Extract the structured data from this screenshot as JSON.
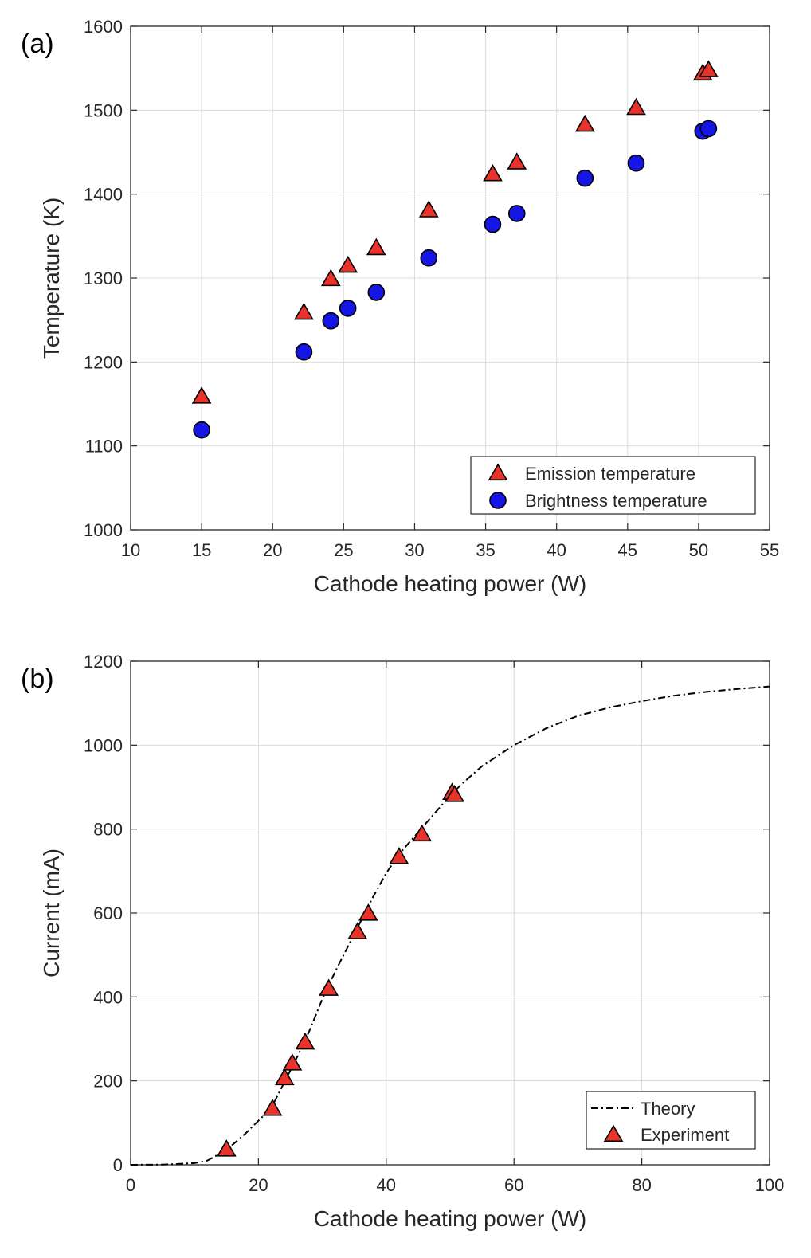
{
  "chart_data": [
    {
      "panel_label": "(a)",
      "type": "scatter",
      "xlabel": "Cathode heating power (W)",
      "ylabel": "Temperature (K)",
      "xlim": [
        10,
        55
      ],
      "ylim": [
        1000,
        1600
      ],
      "xticks": [
        10,
        15,
        20,
        25,
        30,
        35,
        40,
        45,
        50,
        55
      ],
      "yticks": [
        1000,
        1100,
        1200,
        1300,
        1400,
        1500,
        1600
      ],
      "grid": true,
      "legend_position": "bottom-right",
      "series": [
        {
          "name": "Emission temperature",
          "marker": "triangle",
          "color": "#e8322a",
          "points": [
            [
              15.0,
              1158
            ],
            [
              22.2,
              1258
            ],
            [
              24.1,
              1298
            ],
            [
              25.3,
              1314
            ],
            [
              27.3,
              1335
            ],
            [
              31.0,
              1380
            ],
            [
              35.5,
              1423
            ],
            [
              37.2,
              1437
            ],
            [
              42.0,
              1482
            ],
            [
              45.6,
              1502
            ],
            [
              50.3,
              1543
            ],
            [
              50.7,
              1547
            ]
          ]
        },
        {
          "name": "Brightness temperature",
          "marker": "circle",
          "color": "#1515e6",
          "points": [
            [
              15.0,
              1119
            ],
            [
              22.2,
              1212
            ],
            [
              24.1,
              1249
            ],
            [
              25.3,
              1264
            ],
            [
              27.3,
              1283
            ],
            [
              31.0,
              1324
            ],
            [
              35.5,
              1364
            ],
            [
              37.2,
              1377
            ],
            [
              42.0,
              1419
            ],
            [
              45.6,
              1437
            ],
            [
              50.3,
              1475
            ],
            [
              50.7,
              1478
            ]
          ]
        }
      ]
    },
    {
      "panel_label": "(b)",
      "type": "line",
      "xlabel": "Cathode heating power (W)",
      "ylabel": "Current (mA)",
      "xlim": [
        0,
        100
      ],
      "ylim": [
        0,
        1200
      ],
      "xticks": [
        0,
        20,
        40,
        60,
        80,
        100
      ],
      "yticks": [
        0,
        200,
        400,
        600,
        800,
        1000,
        1200
      ],
      "grid": true,
      "legend_position": "bottom-right",
      "series": [
        {
          "name": "Theory",
          "style": "dash-dot",
          "color": "#000000",
          "points": [
            [
              0,
              0
            ],
            [
              5,
              0.5
            ],
            [
              10,
              4
            ],
            [
              12,
              10
            ],
            [
              15,
              35
            ],
            [
              18,
              75
            ],
            [
              20,
              105
            ],
            [
              22,
              135
            ],
            [
              24,
              195
            ],
            [
              26,
              255
            ],
            [
              28,
              320
            ],
            [
              30,
              395
            ],
            [
              32,
              460
            ],
            [
              34,
              520
            ],
            [
              36,
              580
            ],
            [
              38,
              640
            ],
            [
              40,
              695
            ],
            [
              42,
              740
            ],
            [
              44,
              775
            ],
            [
              46,
              810
            ],
            [
              48,
              845
            ],
            [
              50,
              880
            ],
            [
              52,
              910
            ],
            [
              55,
              950
            ],
            [
              60,
              1000
            ],
            [
              65,
              1040
            ],
            [
              70,
              1070
            ],
            [
              75,
              1090
            ],
            [
              80,
              1105
            ],
            [
              85,
              1118
            ],
            [
              90,
              1127
            ],
            [
              95,
              1134
            ],
            [
              100,
              1140
            ]
          ]
        },
        {
          "name": "Experiment",
          "marker": "triangle",
          "color": "#e8322a",
          "points": [
            [
              15.0,
              35
            ],
            [
              22.2,
              132
            ],
            [
              24.1,
              205
            ],
            [
              25.3,
              240
            ],
            [
              27.3,
              290
            ],
            [
              31.0,
              418
            ],
            [
              35.5,
              553
            ],
            [
              37.2,
              597
            ],
            [
              42.0,
              732
            ],
            [
              45.6,
              786
            ],
            [
              50.3,
              885
            ],
            [
              50.7,
              880
            ]
          ]
        }
      ]
    }
  ]
}
